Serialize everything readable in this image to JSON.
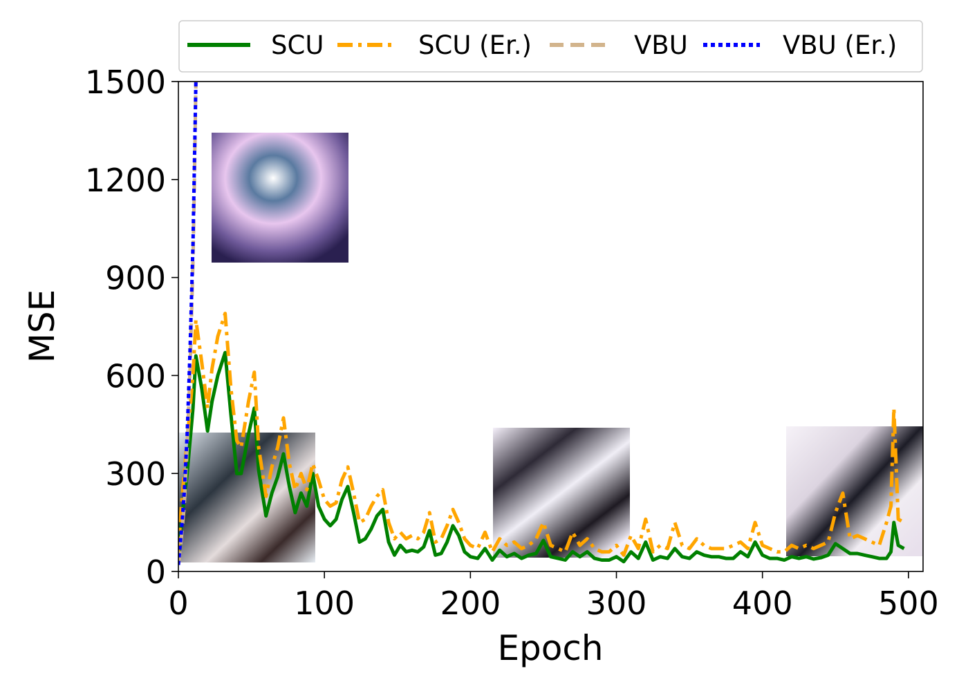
{
  "chart_data": {
    "type": "line",
    "title": "",
    "xlabel": "Epoch",
    "ylabel": "MSE",
    "xlim": [
      0,
      510
    ],
    "ylim": [
      0,
      1500
    ],
    "xticks": [
      0,
      100,
      200,
      300,
      400,
      500
    ],
    "yticks": [
      0,
      300,
      600,
      900,
      1200,
      1500
    ],
    "grid": false,
    "legend_position": "top",
    "series": [
      {
        "name": "SCU",
        "color": "#008000",
        "style": "solid",
        "x": [
          0,
          2,
          6,
          10,
          12,
          16,
          20,
          23,
          27,
          32,
          36,
          40,
          43,
          48,
          52,
          55,
          60,
          64,
          68,
          72,
          76,
          80,
          84,
          88,
          92,
          96,
          100,
          104,
          108,
          112,
          116,
          120,
          124,
          128,
          132,
          136,
          140,
          144,
          148,
          152,
          156,
          160,
          164,
          168,
          172,
          176,
          180,
          184,
          188,
          192,
          196,
          200,
          205,
          210,
          215,
          220,
          225,
          230,
          235,
          240,
          245,
          250,
          255,
          260,
          265,
          270,
          275,
          280,
          285,
          290,
          295,
          300,
          305,
          310,
          315,
          320,
          325,
          330,
          335,
          340,
          345,
          350,
          355,
          360,
          365,
          370,
          375,
          380,
          385,
          390,
          395,
          400,
          405,
          410,
          415,
          420,
          425,
          430,
          435,
          440,
          445,
          450,
          455,
          460,
          465,
          470,
          475,
          480,
          485,
          488,
          490,
          493,
          497
        ],
        "y": [
          40,
          150,
          300,
          500,
          660,
          560,
          430,
          520,
          600,
          670,
          480,
          300,
          300,
          420,
          500,
          310,
          170,
          240,
          290,
          360,
          260,
          180,
          240,
          200,
          300,
          200,
          160,
          140,
          160,
          220,
          260,
          180,
          90,
          100,
          130,
          170,
          190,
          90,
          50,
          80,
          60,
          65,
          60,
          75,
          125,
          50,
          55,
          90,
          140,
          110,
          60,
          45,
          40,
          70,
          35,
          65,
          45,
          55,
          40,
          50,
          55,
          95,
          45,
          40,
          35,
          60,
          45,
          60,
          40,
          35,
          35,
          45,
          30,
          60,
          40,
          90,
          35,
          45,
          40,
          70,
          45,
          40,
          60,
          50,
          45,
          45,
          40,
          40,
          60,
          45,
          90,
          50,
          40,
          40,
          35,
          45,
          40,
          45,
          38,
          42,
          50,
          85,
          70,
          55,
          55,
          50,
          45,
          40,
          40,
          60,
          150,
          80,
          70
        ]
      },
      {
        "name": "SCU (Er.)",
        "color": "#FFA500",
        "style": "dashdot",
        "x": [
          0,
          2,
          6,
          10,
          12,
          16,
          20,
          23,
          27,
          32,
          36,
          40,
          43,
          48,
          52,
          55,
          60,
          64,
          68,
          72,
          76,
          80,
          84,
          88,
          92,
          96,
          100,
          104,
          108,
          112,
          116,
          120,
          124,
          128,
          132,
          136,
          140,
          144,
          148,
          152,
          156,
          160,
          164,
          168,
          172,
          176,
          180,
          184,
          188,
          192,
          196,
          200,
          205,
          210,
          215,
          220,
          225,
          230,
          235,
          240,
          245,
          250,
          255,
          260,
          265,
          270,
          275,
          280,
          285,
          290,
          295,
          300,
          305,
          310,
          315,
          320,
          325,
          330,
          335,
          340,
          345,
          350,
          355,
          360,
          365,
          370,
          375,
          380,
          385,
          390,
          395,
          400,
          405,
          410,
          415,
          420,
          425,
          430,
          435,
          440,
          445,
          450,
          455,
          460,
          465,
          470,
          475,
          480,
          485,
          488,
          490,
          493,
          497
        ],
        "y": [
          60,
          200,
          400,
          600,
          770,
          640,
          500,
          620,
          720,
          790,
          560,
          400,
          380,
          520,
          610,
          380,
          230,
          320,
          380,
          470,
          330,
          250,
          300,
          250,
          330,
          280,
          220,
          200,
          210,
          280,
          320,
          240,
          150,
          160,
          200,
          230,
          250,
          150,
          100,
          120,
          100,
          110,
          100,
          120,
          180,
          90,
          100,
          140,
          190,
          150,
          100,
          80,
          70,
          120,
          60,
          100,
          80,
          90,
          70,
          80,
          100,
          150,
          80,
          70,
          60,
          120,
          80,
          100,
          70,
          60,
          60,
          80,
          50,
          110,
          70,
          160,
          60,
          80,
          70,
          150,
          80,
          70,
          100,
          80,
          70,
          70,
          70,
          80,
          90,
          70,
          150,
          80,
          70,
          60,
          60,
          80,
          70,
          80,
          70,
          80,
          90,
          180,
          240,
          100,
          110,
          100,
          90,
          80,
          150,
          200,
          500,
          160,
          150
        ]
      },
      {
        "name": "VBU",
        "color": "#D2B48C",
        "style": "dashed",
        "x": [
          0,
          2,
          4,
          6,
          8,
          10,
          11,
          12
        ],
        "y": [
          20,
          100,
          200,
          380,
          620,
          950,
          1200,
          1500
        ]
      },
      {
        "name": "VBU (Er.)",
        "color": "#0000FF",
        "style": "dotted",
        "x": [
          0,
          2,
          4,
          6,
          8,
          10,
          11,
          12
        ],
        "y": [
          20,
          120,
          240,
          420,
          680,
          1000,
          1250,
          1500
        ]
      }
    ]
  }
}
